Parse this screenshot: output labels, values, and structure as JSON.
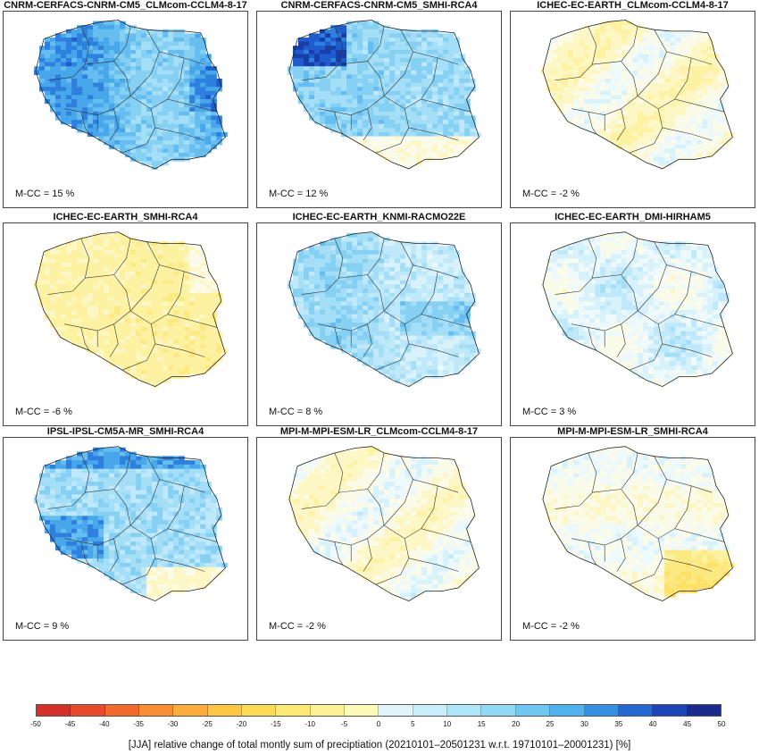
{
  "panels": [
    {
      "title": "CNRM-CERFACS-CNRM-CM5_CLMcom-CCLM4-8-17",
      "mcc": "M-CC = 15 %",
      "pattern": "blue",
      "tint": 0.55
    },
    {
      "title": "CNRM-CERFACS-CNRM-CM5_SMHI-RCA4",
      "mcc": "M-CC = 12 %",
      "pattern": "blue-nw",
      "tint": 0.45
    },
    {
      "title": "ICHEC-EC-EARTH_CLMcom-CCLM4-8-17",
      "mcc": "M-CC = -2 %",
      "pattern": "mixed-yellow",
      "tint": -0.15
    },
    {
      "title": "ICHEC-EC-EARTH_SMHI-RCA4",
      "mcc": "M-CC = -6 %",
      "pattern": "yellow",
      "tint": -0.35
    },
    {
      "title": "ICHEC-EC-EARTH_KNMI-RACMO22E",
      "mcc": "M-CC = 8 %",
      "pattern": "light-blue",
      "tint": 0.3
    },
    {
      "title": "ICHEC-EC-EARTH_DMI-HIRHAM5",
      "mcc": "M-CC = 3 %",
      "pattern": "mixed",
      "tint": 0.1
    },
    {
      "title": "IPSL-IPSL-CM5A-MR_SMHI-RCA4",
      "mcc": "M-CC = 9 %",
      "pattern": "blue-sw",
      "tint": 0.35
    },
    {
      "title": "MPI-M-MPI-ESM-LR_CLMcom-CCLM4-8-17",
      "mcc": "M-CC = -2 %",
      "pattern": "mixed-yellow",
      "tint": -0.1
    },
    {
      "title": "MPI-M-MPI-ESM-LR_SMHI-RCA4",
      "mcc": "M-CC = -2 %",
      "pattern": "yellow-se",
      "tint": -0.1
    }
  ],
  "colorbar": {
    "ticks": [
      "-50",
      "-45",
      "-40",
      "-35",
      "-30",
      "-25",
      "-20",
      "-15",
      "-10",
      "-5",
      "0",
      "5",
      "10",
      "15",
      "20",
      "25",
      "30",
      "35",
      "40",
      "45",
      "50"
    ],
    "colors": [
      "#d62f27",
      "#e8492a",
      "#f26a2e",
      "#f88d33",
      "#fbac3a",
      "#fcc843",
      "#fddc55",
      "#fde873",
      "#fdf293",
      "#fefab8",
      "#f5fcf2",
      "#dff5fb",
      "#c7eefa",
      "#ade6f8",
      "#8fd9f5",
      "#6ec7f1",
      "#4fb2ec",
      "#358fe2",
      "#2468d4",
      "#1a44b8",
      "#1a2a8c"
    ],
    "label": "[JJA] relative change of total montly sum of preciptiation (20210101–20501231 w.r.t. 19710101–20001231) [%]"
  }
}
